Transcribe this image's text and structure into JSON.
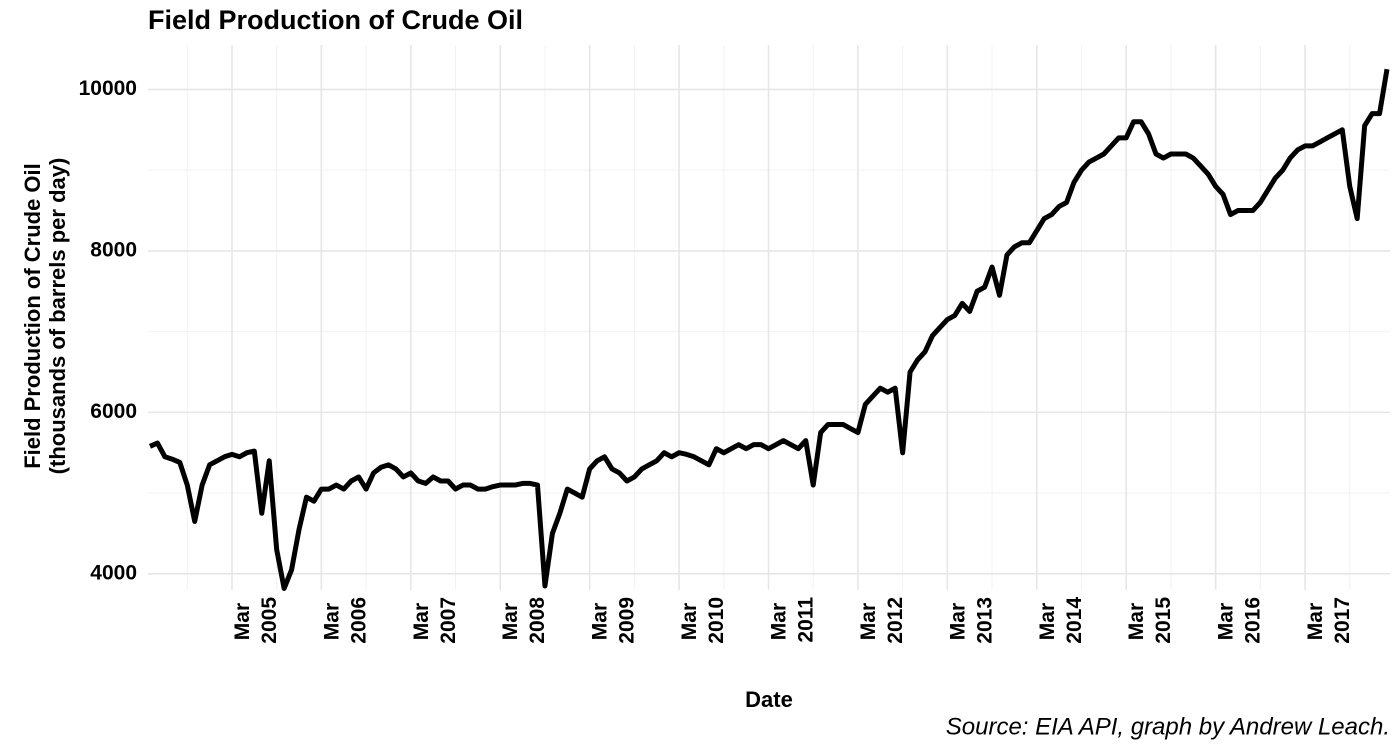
{
  "chart_data": {
    "type": "line",
    "title": "Field Production of Crude Oil",
    "ylabel": [
      "Field Production of Crude Oil",
      "(thousands of barrels per day)"
    ],
    "xlabel": "Date",
    "caption": "Source: EIA API, graph by Andrew Leach.",
    "grid": true,
    "xlim": [
      "2004-04",
      "2018-02"
    ],
    "ylim": [
      3800,
      10550
    ],
    "yticks": [
      4000,
      6000,
      8000,
      10000
    ],
    "y_minor_grid": [
      5000,
      7000,
      9000
    ],
    "xticks": [
      {
        "value": "2005-03",
        "label": "Mar 2005"
      },
      {
        "value": "2006-03",
        "label": "Mar 2006"
      },
      {
        "value": "2007-03",
        "label": "Mar 2007"
      },
      {
        "value": "2008-03",
        "label": "Mar 2008"
      },
      {
        "value": "2009-03",
        "label": "Mar 2009"
      },
      {
        "value": "2010-03",
        "label": "Mar 2010"
      },
      {
        "value": "2011-03",
        "label": "Mar 2011"
      },
      {
        "value": "2012-03",
        "label": "Mar 2012"
      },
      {
        "value": "2013-03",
        "label": "Mar 2013"
      },
      {
        "value": "2014-03",
        "label": "Mar 2014"
      },
      {
        "value": "2015-03",
        "label": "Mar 2015"
      },
      {
        "value": "2016-03",
        "label": "Mar 2016"
      },
      {
        "value": "2017-03",
        "label": "Mar 2017"
      }
    ],
    "x_minor_grid": [
      "2004-09",
      "2005-09",
      "2006-09",
      "2007-09",
      "2008-09",
      "2009-09",
      "2010-09",
      "2011-09",
      "2012-09",
      "2013-09",
      "2014-09",
      "2015-09",
      "2016-09",
      "2017-09"
    ],
    "x": [
      "2004-04",
      "2004-05",
      "2004-06",
      "2004-07",
      "2004-08",
      "2004-09",
      "2004-10",
      "2004-11",
      "2004-12",
      "2005-01",
      "2005-02",
      "2005-03",
      "2005-04",
      "2005-05",
      "2005-06",
      "2005-07",
      "2005-08",
      "2005-09",
      "2005-10",
      "2005-11",
      "2005-12",
      "2006-01",
      "2006-02",
      "2006-03",
      "2006-04",
      "2006-05",
      "2006-06",
      "2006-07",
      "2006-08",
      "2006-09",
      "2006-10",
      "2006-11",
      "2006-12",
      "2007-01",
      "2007-02",
      "2007-03",
      "2007-04",
      "2007-05",
      "2007-06",
      "2007-07",
      "2007-08",
      "2007-09",
      "2007-10",
      "2007-11",
      "2007-12",
      "2008-01",
      "2008-02",
      "2008-03",
      "2008-04",
      "2008-05",
      "2008-06",
      "2008-07",
      "2008-08",
      "2008-09",
      "2008-10",
      "2008-11",
      "2008-12",
      "2009-01",
      "2009-02",
      "2009-03",
      "2009-04",
      "2009-05",
      "2009-06",
      "2009-07",
      "2009-08",
      "2009-09",
      "2009-10",
      "2009-11",
      "2009-12",
      "2010-01",
      "2010-02",
      "2010-03",
      "2010-04",
      "2010-05",
      "2010-06",
      "2010-07",
      "2010-08",
      "2010-09",
      "2010-10",
      "2010-11",
      "2010-12",
      "2011-01",
      "2011-02",
      "2011-03",
      "2011-04",
      "2011-05",
      "2011-06",
      "2011-07",
      "2011-08",
      "2011-09",
      "2011-10",
      "2011-11",
      "2011-12",
      "2012-01",
      "2012-02",
      "2012-03",
      "2012-04",
      "2012-05",
      "2012-06",
      "2012-07",
      "2012-08",
      "2012-09",
      "2012-10",
      "2012-11",
      "2012-12",
      "2013-01",
      "2013-02",
      "2013-03",
      "2013-04",
      "2013-05",
      "2013-06",
      "2013-07",
      "2013-08",
      "2013-09",
      "2013-10",
      "2013-11",
      "2013-12",
      "2014-01",
      "2014-02",
      "2014-03",
      "2014-04",
      "2014-05",
      "2014-06",
      "2014-07",
      "2014-08",
      "2014-09",
      "2014-10",
      "2014-11",
      "2014-12",
      "2015-01",
      "2015-02",
      "2015-03",
      "2015-04",
      "2015-05",
      "2015-06",
      "2015-07",
      "2015-08",
      "2015-09",
      "2015-10",
      "2015-11",
      "2015-12",
      "2016-01",
      "2016-02",
      "2016-03",
      "2016-04",
      "2016-05",
      "2016-06",
      "2016-07",
      "2016-08",
      "2016-09",
      "2016-10",
      "2016-11",
      "2016-12",
      "2017-01",
      "2017-02",
      "2017-03",
      "2017-04",
      "2017-05",
      "2017-06",
      "2017-07",
      "2017-08",
      "2017-09",
      "2017-10",
      "2017-11",
      "2017-12",
      "2018-01",
      "2018-02"
    ],
    "series": [
      {
        "color": "#000000",
        "values": [
          5580,
          5620,
          5450,
          5420,
          5380,
          5100,
          4650,
          5100,
          5350,
          5400,
          5450,
          5480,
          5450,
          5500,
          5520,
          4750,
          5400,
          4300,
          3820,
          4050,
          4550,
          4950,
          4900,
          5050,
          5050,
          5100,
          5050,
          5150,
          5200,
          5050,
          5250,
          5320,
          5350,
          5300,
          5200,
          5250,
          5150,
          5120,
          5200,
          5150,
          5150,
          5050,
          5100,
          5100,
          5050,
          5050,
          5080,
          5100,
          5100,
          5100,
          5120,
          5120,
          5100,
          3850,
          4500,
          4750,
          5050,
          5000,
          4950,
          5300,
          5400,
          5450,
          5300,
          5250,
          5150,
          5200,
          5300,
          5350,
          5400,
          5500,
          5450,
          5500,
          5480,
          5450,
          5400,
          5350,
          5550,
          5500,
          5550,
          5600,
          5550,
          5600,
          5600,
          5550,
          5600,
          5650,
          5600,
          5550,
          5650,
          5100,
          5750,
          5850,
          5850,
          5850,
          5800,
          5750,
          6100,
          6200,
          6300,
          6250,
          6300,
          5500,
          6500,
          6650,
          6750,
          6950,
          7050,
          7150,
          7200,
          7350,
          7250,
          7500,
          7550,
          7800,
          7450,
          7950,
          8050,
          8100,
          8100,
          8250,
          8400,
          8450,
          8550,
          8600,
          8850,
          9000,
          9100,
          9150,
          9200,
          9300,
          9400,
          9400,
          9600,
          9600,
          9450,
          9200,
          9150,
          9200,
          9200,
          9200,
          9150,
          9050,
          8950,
          8800,
          8700,
          8450,
          8500,
          8500,
          8500,
          8600,
          8750,
          8900,
          9000,
          9150,
          9250,
          9300,
          9300,
          9350,
          9400,
          9450,
          9500,
          8800,
          8400,
          9550,
          9700,
          9700,
          10250
        ]
      }
    ]
  }
}
